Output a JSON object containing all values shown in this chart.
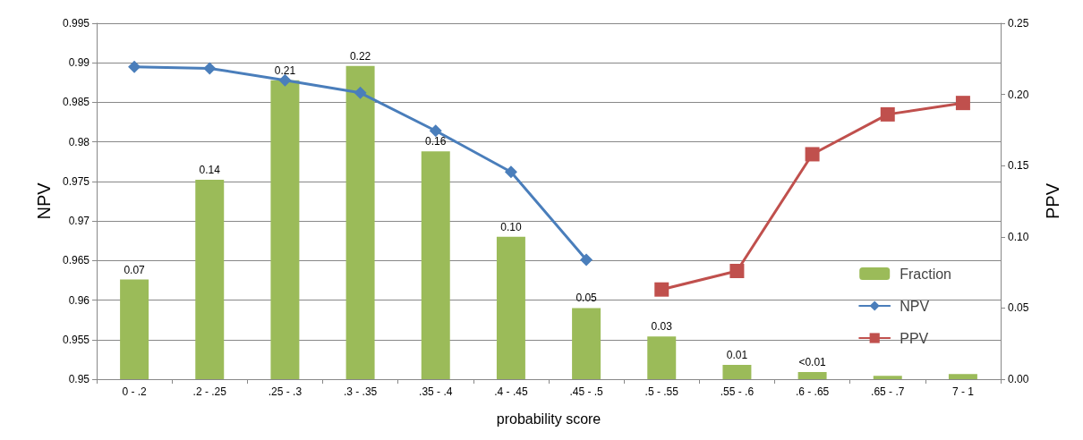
{
  "chart_data": {
    "type": "bar",
    "xlabel": "probability score",
    "ylabel": "NPV",
    "y2label": "PPV",
    "categories": [
      "0 - .2",
      ".2 - .25",
      ".25 - .3",
      ".3 - .35",
      ".35 - .4",
      ".4 - .45",
      ".45 - .5",
      ".5 - .55",
      ".55 - .6",
      ".6 - .65",
      ".65 - .7",
      "7 - 1"
    ],
    "series": [
      {
        "name": "Fraction",
        "axis": "y2",
        "color": "#9bbb59",
        "values": [
          0.07,
          0.14,
          0.21,
          0.22,
          0.16,
          0.1,
          0.05,
          0.03,
          0.01,
          0.005,
          0.0024,
          0.0036
        ],
        "value_labels": [
          "0.07",
          "0.14",
          "0.21",
          "0.22",
          "0.16",
          "0.10",
          "0.05",
          "0.03",
          "0.01",
          "<0.01",
          null,
          null
        ]
      },
      {
        "name": "NPV",
        "type": "line",
        "color": "#4a7ebb",
        "marker": "diamond",
        "values": [
          0.9895,
          0.9893,
          0.9878,
          0.9862,
          0.9814,
          0.9762,
          0.9651,
          null,
          null,
          null,
          null,
          null
        ]
      },
      {
        "name": "PPV",
        "type": "line",
        "axis": "y2",
        "color": "#c0504d",
        "marker": "square",
        "values": [
          null,
          null,
          null,
          null,
          null,
          null,
          null,
          0.063,
          0.076,
          0.158,
          0.186,
          0.194
        ]
      }
    ],
    "ylim": [
      0.95,
      0.995
    ],
    "yticks": [
      0.95,
      0.955,
      0.96,
      0.965,
      0.97,
      0.975,
      0.98,
      0.985,
      0.99,
      0.995
    ],
    "y2lim": [
      0,
      0.25
    ],
    "y2ticks": [
      {
        "value": 0,
        "label": "0.00"
      },
      {
        "value": 0.05,
        "label": "0.05"
      },
      {
        "value": 0.1,
        "label": "0.10"
      },
      {
        "value": 0.15,
        "label": "0.15"
      },
      {
        "value": 0.2,
        "label": "0.20"
      },
      {
        "value": 0.25,
        "label": "0.25"
      }
    ],
    "grid": "y",
    "legend": "right",
    "line_style": "solid"
  }
}
